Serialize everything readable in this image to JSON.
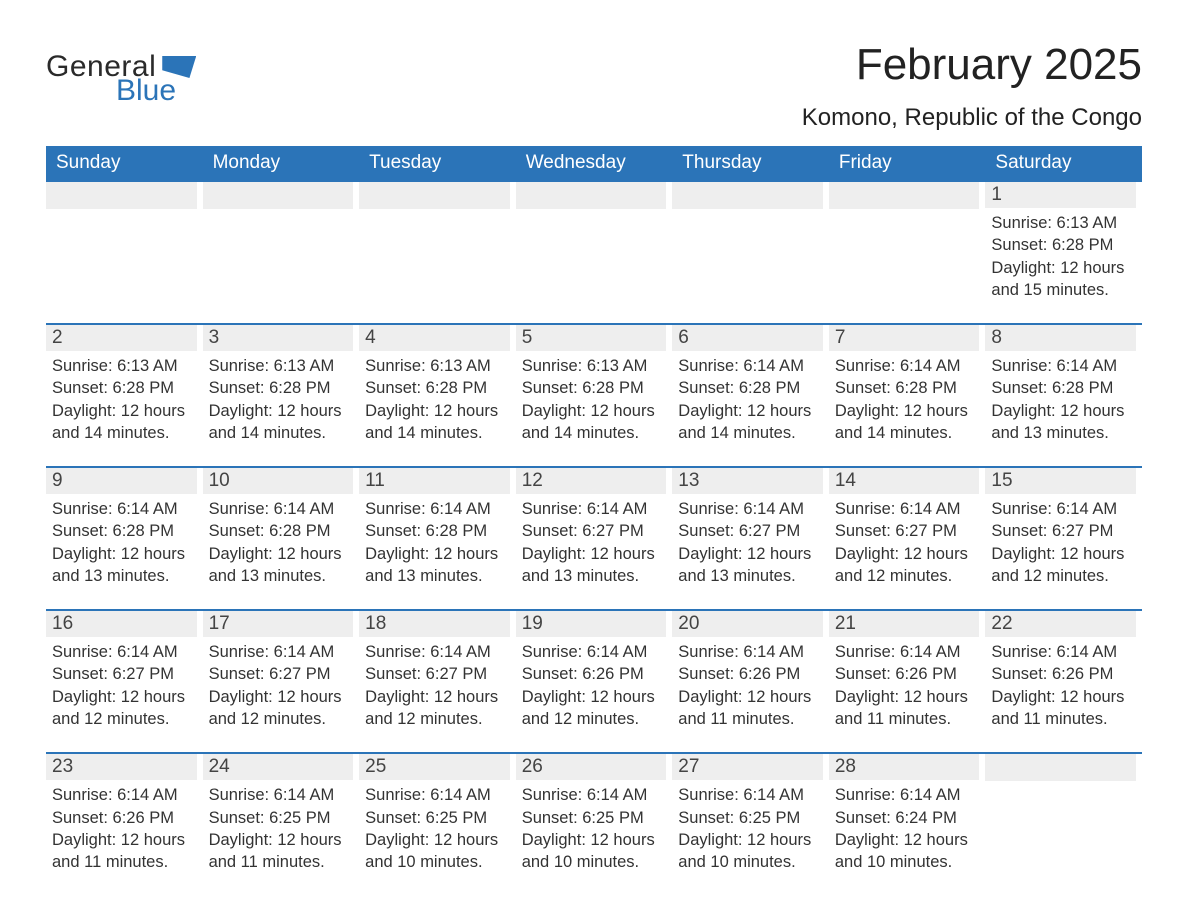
{
  "brand": {
    "word1": "General",
    "word2": "Blue"
  },
  "title": "February 2025",
  "location": "Komono, Republic of the Congo",
  "weekdays": [
    "Sunday",
    "Monday",
    "Tuesday",
    "Wednesday",
    "Thursday",
    "Friday",
    "Saturday"
  ],
  "colors": {
    "brand_blue": "#2b74b8",
    "header_row_bg": "#eeeeee",
    "text": "#333333",
    "background": "#ffffff"
  },
  "calendar": {
    "first_weekday_index": 6,
    "days": [
      {
        "n": 1,
        "sunrise": "6:13 AM",
        "sunset": "6:28 PM",
        "daylight": "12 hours and 15 minutes."
      },
      {
        "n": 2,
        "sunrise": "6:13 AM",
        "sunset": "6:28 PM",
        "daylight": "12 hours and 14 minutes."
      },
      {
        "n": 3,
        "sunrise": "6:13 AM",
        "sunset": "6:28 PM",
        "daylight": "12 hours and 14 minutes."
      },
      {
        "n": 4,
        "sunrise": "6:13 AM",
        "sunset": "6:28 PM",
        "daylight": "12 hours and 14 minutes."
      },
      {
        "n": 5,
        "sunrise": "6:13 AM",
        "sunset": "6:28 PM",
        "daylight": "12 hours and 14 minutes."
      },
      {
        "n": 6,
        "sunrise": "6:14 AM",
        "sunset": "6:28 PM",
        "daylight": "12 hours and 14 minutes."
      },
      {
        "n": 7,
        "sunrise": "6:14 AM",
        "sunset": "6:28 PM",
        "daylight": "12 hours and 14 minutes."
      },
      {
        "n": 8,
        "sunrise": "6:14 AM",
        "sunset": "6:28 PM",
        "daylight": "12 hours and 13 minutes."
      },
      {
        "n": 9,
        "sunrise": "6:14 AM",
        "sunset": "6:28 PM",
        "daylight": "12 hours and 13 minutes."
      },
      {
        "n": 10,
        "sunrise": "6:14 AM",
        "sunset": "6:28 PM",
        "daylight": "12 hours and 13 minutes."
      },
      {
        "n": 11,
        "sunrise": "6:14 AM",
        "sunset": "6:28 PM",
        "daylight": "12 hours and 13 minutes."
      },
      {
        "n": 12,
        "sunrise": "6:14 AM",
        "sunset": "6:27 PM",
        "daylight": "12 hours and 13 minutes."
      },
      {
        "n": 13,
        "sunrise": "6:14 AM",
        "sunset": "6:27 PM",
        "daylight": "12 hours and 13 minutes."
      },
      {
        "n": 14,
        "sunrise": "6:14 AM",
        "sunset": "6:27 PM",
        "daylight": "12 hours and 12 minutes."
      },
      {
        "n": 15,
        "sunrise": "6:14 AM",
        "sunset": "6:27 PM",
        "daylight": "12 hours and 12 minutes."
      },
      {
        "n": 16,
        "sunrise": "6:14 AM",
        "sunset": "6:27 PM",
        "daylight": "12 hours and 12 minutes."
      },
      {
        "n": 17,
        "sunrise": "6:14 AM",
        "sunset": "6:27 PM",
        "daylight": "12 hours and 12 minutes."
      },
      {
        "n": 18,
        "sunrise": "6:14 AM",
        "sunset": "6:27 PM",
        "daylight": "12 hours and 12 minutes."
      },
      {
        "n": 19,
        "sunrise": "6:14 AM",
        "sunset": "6:26 PM",
        "daylight": "12 hours and 12 minutes."
      },
      {
        "n": 20,
        "sunrise": "6:14 AM",
        "sunset": "6:26 PM",
        "daylight": "12 hours and 11 minutes."
      },
      {
        "n": 21,
        "sunrise": "6:14 AM",
        "sunset": "6:26 PM",
        "daylight": "12 hours and 11 minutes."
      },
      {
        "n": 22,
        "sunrise": "6:14 AM",
        "sunset": "6:26 PM",
        "daylight": "12 hours and 11 minutes."
      },
      {
        "n": 23,
        "sunrise": "6:14 AM",
        "sunset": "6:26 PM",
        "daylight": "12 hours and 11 minutes."
      },
      {
        "n": 24,
        "sunrise": "6:14 AM",
        "sunset": "6:25 PM",
        "daylight": "12 hours and 11 minutes."
      },
      {
        "n": 25,
        "sunrise": "6:14 AM",
        "sunset": "6:25 PM",
        "daylight": "12 hours and 10 minutes."
      },
      {
        "n": 26,
        "sunrise": "6:14 AM",
        "sunset": "6:25 PM",
        "daylight": "12 hours and 10 minutes."
      },
      {
        "n": 27,
        "sunrise": "6:14 AM",
        "sunset": "6:25 PM",
        "daylight": "12 hours and 10 minutes."
      },
      {
        "n": 28,
        "sunrise": "6:14 AM",
        "sunset": "6:24 PM",
        "daylight": "12 hours and 10 minutes."
      }
    ]
  },
  "labels": {
    "sunrise": "Sunrise:",
    "sunset": "Sunset:",
    "daylight": "Daylight:"
  }
}
